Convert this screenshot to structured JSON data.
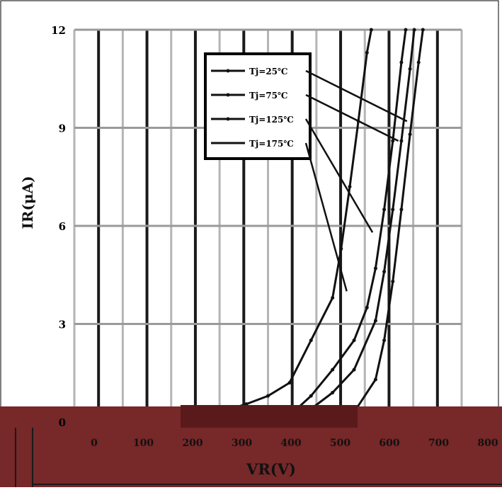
{
  "chart_data": {
    "type": "line",
    "title": "",
    "xlabel": "VR(V)",
    "ylabel": "IR(μA)",
    "xlim": [
      -100,
      800
    ],
    "ylim": [
      0,
      12
    ],
    "x_tick_labels": [
      "0",
      "100",
      "200",
      "300",
      "400",
      "500",
      "600",
      "700",
      "800"
    ],
    "y_tick_labels": [
      "0",
      "3",
      "6",
      "9",
      "12"
    ],
    "grid": true,
    "legend_position": "top-center",
    "series": [
      {
        "name": "Tj=25℃",
        "x": [
          -100,
          0,
          100,
          200,
          300,
          400,
          500,
          550,
          600,
          620,
          640,
          660,
          680,
          700,
          710
        ],
        "y": [
          0,
          0,
          0,
          0,
          0,
          0,
          0.1,
          0.3,
          1.3,
          2.5,
          4.3,
          6.5,
          8.8,
          11.0,
          12.0
        ]
      },
      {
        "name": "Tj=75℃",
        "x": [
          -100,
          0,
          100,
          200,
          300,
          400,
          450,
          500,
          550,
          600,
          620,
          640,
          660,
          680,
          690
        ],
        "y": [
          0,
          0,
          0,
          0,
          0,
          0.1,
          0.4,
          0.9,
          1.6,
          3.1,
          4.6,
          6.5,
          8.6,
          10.8,
          12.0
        ]
      },
      {
        "name": "Tj=125℃",
        "x": [
          -100,
          0,
          100,
          200,
          300,
          400,
          450,
          500,
          550,
          580,
          600,
          620,
          640,
          660,
          670
        ],
        "y": [
          0,
          0,
          0,
          0,
          0,
          0.2,
          0.8,
          1.6,
          2.5,
          3.5,
          4.7,
          6.5,
          8.6,
          11.0,
          12.0
        ]
      },
      {
        "name": "Tj=175℃",
        "x": [
          -100,
          0,
          100,
          200,
          250,
          300,
          350,
          400,
          450,
          500,
          520,
          540,
          560,
          580,
          590
        ],
        "y": [
          0,
          0,
          0.1,
          0.2,
          0.35,
          0.55,
          0.8,
          1.2,
          2.5,
          3.8,
          5.3,
          7.2,
          9.2,
          11.3,
          12.0
        ]
      }
    ]
  }
}
